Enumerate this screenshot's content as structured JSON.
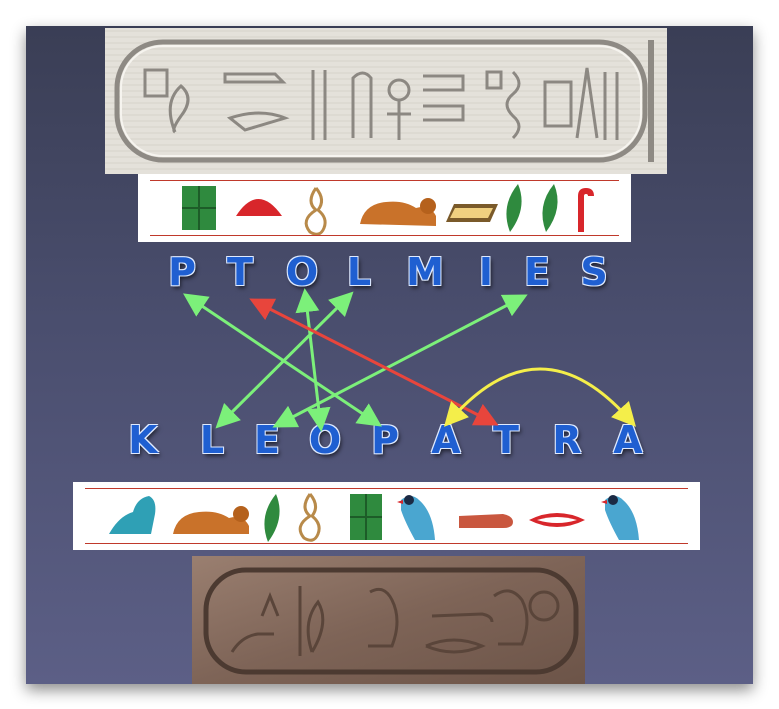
{
  "top_word": [
    "P",
    "T",
    "O",
    "L",
    "M",
    "I",
    "E",
    "S"
  ],
  "bottom_word": [
    "K",
    "L",
    "E",
    "O",
    "P",
    "A",
    "T",
    "R",
    "A"
  ],
  "colors": {
    "letter_fill": "#1f5fd1",
    "green_arrow": "#7cf07a",
    "red_arrow": "#e8453c",
    "yellow_arrow": "#f4ee4a",
    "strip_line": "#c0392b"
  },
  "top_glyphs": [
    "square-stool-icon",
    "bread-loaf-icon",
    "rope-loop-icon",
    "lion-icon",
    "folded-cloth-icon",
    "reed-leaf-icon",
    "reed-leaf-icon",
    "folded-cloth-icon"
  ],
  "bottom_glyphs": [
    "hill-slope-icon",
    "lion-icon",
    "reed-leaf-icon",
    "rope-loop-icon",
    "square-stool-icon",
    "vulture-icon",
    "hand-icon",
    "mouth-icon",
    "vulture-icon"
  ]
}
